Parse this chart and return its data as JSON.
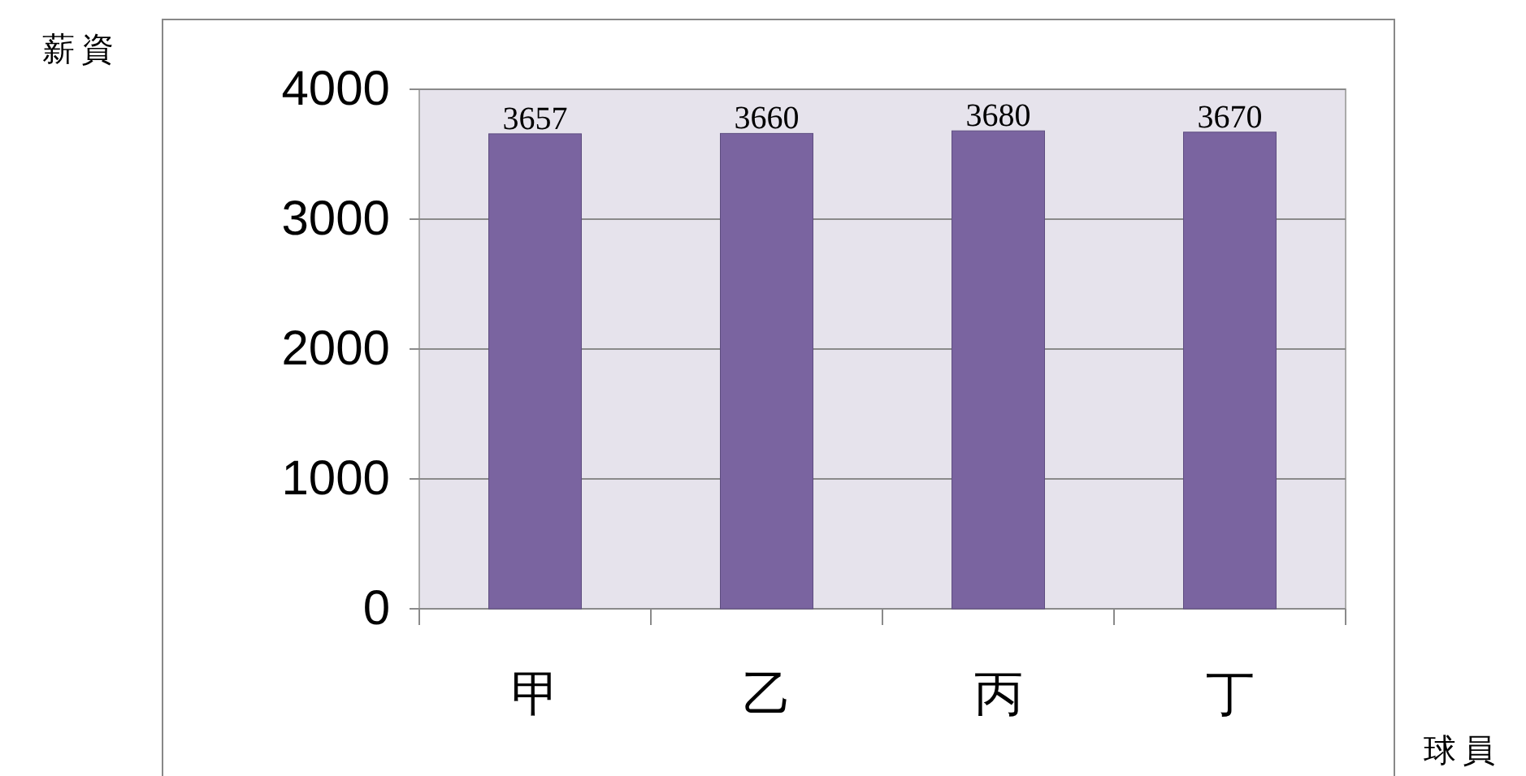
{
  "chart_data": {
    "type": "bar",
    "ylabel": "薪資",
    "xlabel": "球員",
    "categories": [
      "甲",
      "乙",
      "丙",
      "丁"
    ],
    "values": [
      3657,
      3660,
      3680,
      3670
    ],
    "color": "#7a64a0",
    "ylim": [
      0,
      4000
    ],
    "yticks": [
      0,
      1000,
      2000,
      3000,
      4000
    ],
    "grid": "y",
    "data_labels": true
  }
}
